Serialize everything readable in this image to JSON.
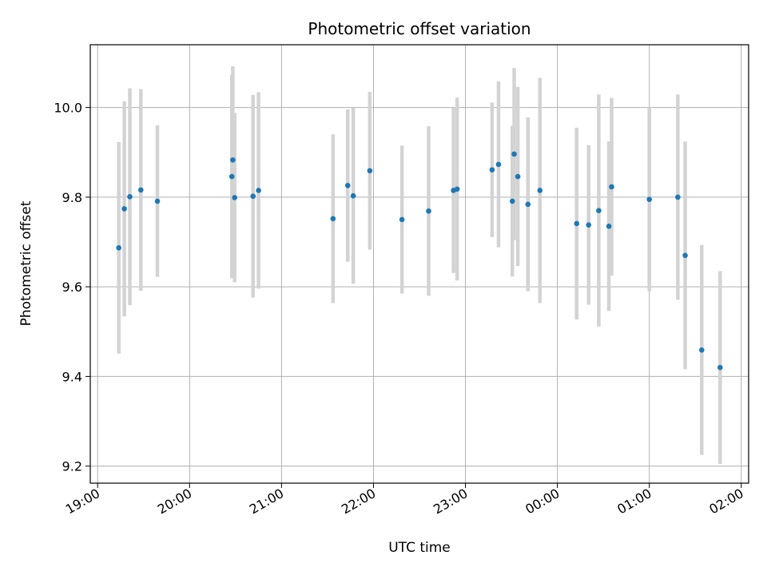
{
  "chart_data": {
    "type": "scatter",
    "title": "Photometric offset variation",
    "xlabel": "UTC time",
    "ylabel": "Photometric offset",
    "x_tick_labels": [
      "19:00",
      "20:00",
      "21:00",
      "22:00",
      "23:00",
      "00:00",
      "01:00",
      "02:00"
    ],
    "x_tick_hours": [
      19,
      20,
      21,
      22,
      23,
      24,
      25,
      26
    ],
    "y_tick_labels": [
      "9.2",
      "9.4",
      "9.6",
      "9.8",
      "10.0"
    ],
    "y_tick_values": [
      9.2,
      9.4,
      9.6,
      9.8,
      10.0
    ],
    "xlim_hours": [
      18.92,
      26.08
    ],
    "ylim": [
      9.162,
      10.14
    ],
    "grid": true,
    "colors": {
      "point": "#1f77b4",
      "errorbar": "#d3d3d3",
      "grid": "#b0b0b0"
    },
    "series": [
      {
        "points": [
          {
            "x": 19.23,
            "y": 9.687,
            "err": 0.236
          },
          {
            "x": 19.29,
            "y": 9.774,
            "err": 0.24
          },
          {
            "x": 19.35,
            "y": 9.801,
            "err": 0.242
          },
          {
            "x": 19.47,
            "y": 9.816,
            "err": 0.225
          },
          {
            "x": 19.65,
            "y": 9.791,
            "err": 0.169
          },
          {
            "x": 20.46,
            "y": 9.846,
            "err": 0.227
          },
          {
            "x": 20.47,
            "y": 9.883,
            "err": 0.209
          },
          {
            "x": 20.49,
            "y": 9.799,
            "err": 0.189
          },
          {
            "x": 20.69,
            "y": 9.802,
            "err": 0.226
          },
          {
            "x": 20.75,
            "y": 9.815,
            "err": 0.219
          },
          {
            "x": 21.56,
            "y": 9.752,
            "err": 0.188
          },
          {
            "x": 21.72,
            "y": 9.826,
            "err": 0.17
          },
          {
            "x": 21.78,
            "y": 9.803,
            "err": 0.196
          },
          {
            "x": 21.96,
            "y": 9.859,
            "err": 0.176
          },
          {
            "x": 22.31,
            "y": 9.75,
            "err": 0.165
          },
          {
            "x": 22.6,
            "y": 9.769,
            "err": 0.189
          },
          {
            "x": 22.87,
            "y": 9.815,
            "err": 0.184
          },
          {
            "x": 22.91,
            "y": 9.818,
            "err": 0.204
          },
          {
            "x": 23.29,
            "y": 9.861,
            "err": 0.15
          },
          {
            "x": 23.36,
            "y": 9.873,
            "err": 0.185
          },
          {
            "x": 23.51,
            "y": 9.791,
            "err": 0.168
          },
          {
            "x": 23.53,
            "y": 9.896,
            "err": 0.192
          },
          {
            "x": 23.57,
            "y": 9.846,
            "err": 0.2
          },
          {
            "x": 23.68,
            "y": 9.784,
            "err": 0.194
          },
          {
            "x": 23.81,
            "y": 9.815,
            "err": 0.251
          },
          {
            "x": 24.21,
            "y": 9.741,
            "err": 0.214
          },
          {
            "x": 24.34,
            "y": 9.738,
            "err": 0.178
          },
          {
            "x": 24.45,
            "y": 9.77,
            "err": 0.259
          },
          {
            "x": 24.56,
            "y": 9.735,
            "err": 0.189
          },
          {
            "x": 24.59,
            "y": 9.823,
            "err": 0.198
          },
          {
            "x": 25.0,
            "y": 9.795,
            "err": 0.205
          },
          {
            "x": 25.31,
            "y": 9.8,
            "err": 0.229
          },
          {
            "x": 25.39,
            "y": 9.67,
            "err": 0.254
          },
          {
            "x": 25.57,
            "y": 9.459,
            "err": 0.234
          },
          {
            "x": 25.77,
            "y": 9.42,
            "err": 0.215
          }
        ]
      }
    ]
  }
}
